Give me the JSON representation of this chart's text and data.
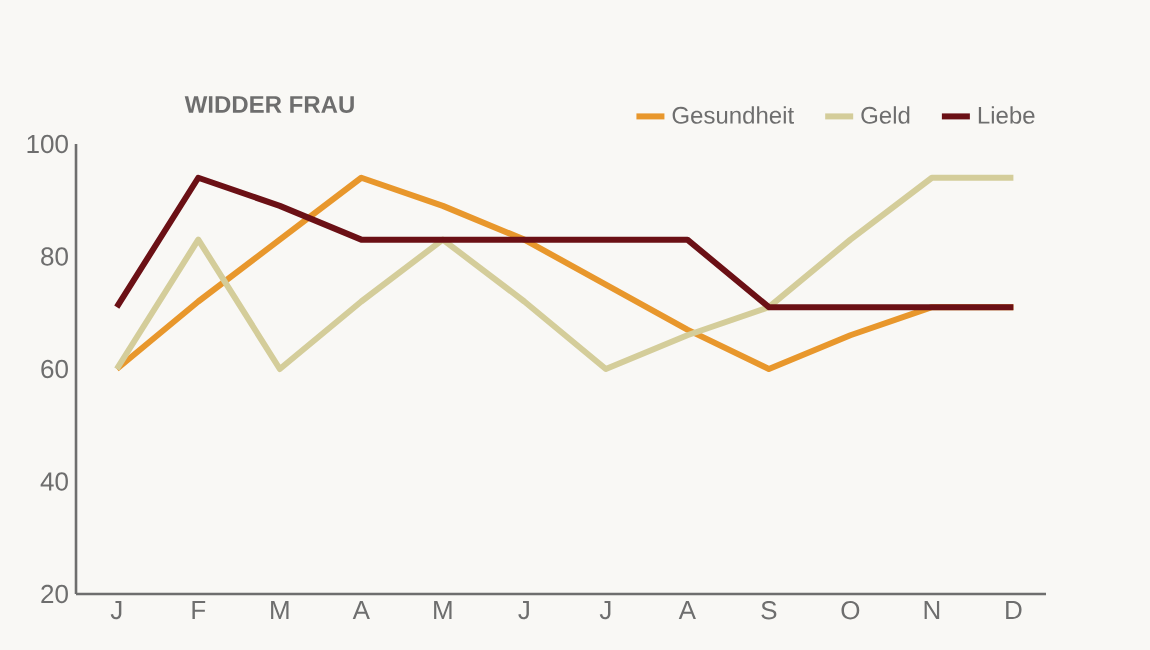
{
  "chart_data": {
    "type": "line",
    "title": "WIDDER FRAU",
    "categories": [
      "J",
      "F",
      "M",
      "A",
      "M",
      "J",
      "J",
      "A",
      "S",
      "O",
      "N",
      "D"
    ],
    "series": [
      {
        "name": "Gesundheit",
        "color": "#e8972c",
        "values": [
          60,
          72,
          83,
          94,
          89,
          83,
          75,
          67,
          60,
          66,
          71,
          71
        ]
      },
      {
        "name": "Geld",
        "color": "#d4cd9a",
        "values": [
          60,
          83,
          60,
          72,
          83,
          72,
          60,
          66,
          71,
          83,
          94,
          94
        ]
      },
      {
        "name": "Liebe",
        "color": "#6b1015",
        "values": [
          71,
          94,
          89,
          83,
          83,
          83,
          83,
          83,
          71,
          71,
          71,
          71
        ]
      }
    ],
    "ylim": [
      20,
      100
    ],
    "yticks": [
      20,
      40,
      60,
      80,
      100
    ],
    "grid": false,
    "legend": "top right",
    "marker": "none",
    "line_style": "solid"
  }
}
